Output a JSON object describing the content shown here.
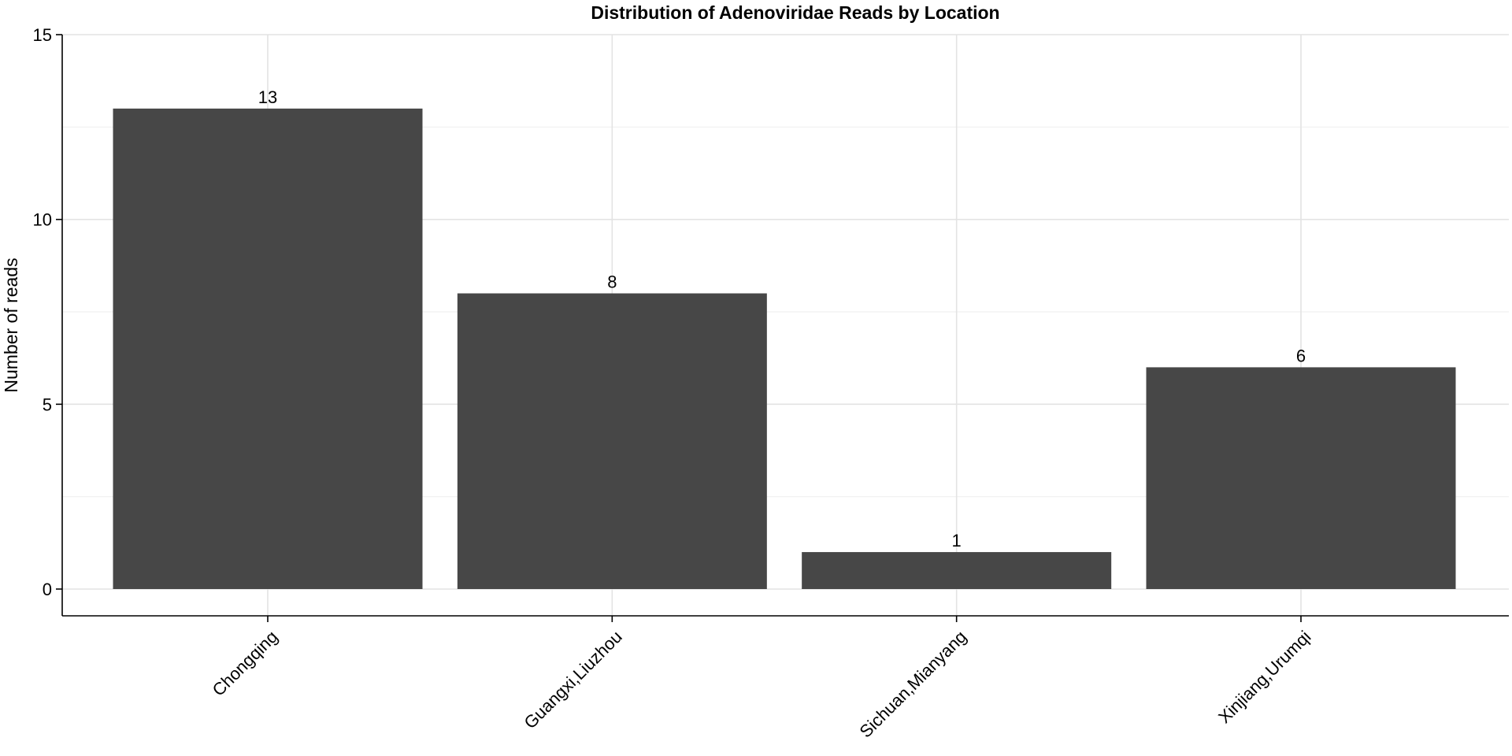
{
  "chart_data": {
    "type": "bar",
    "title": "Distribution of Adenoviridae Reads by Location",
    "xlabel": "",
    "ylabel": "Number of reads",
    "categories": [
      "Chongqing",
      "Guangxi,Liuzhou",
      "Sichuan,Mianyang",
      "Xinjiang,Urumqi"
    ],
    "values": [
      13,
      8,
      1,
      6
    ],
    "data_labels": [
      "13",
      "8",
      "1",
      "6"
    ],
    "ylim": [
      0,
      15
    ],
    "yticks": [
      0,
      5,
      10,
      15
    ],
    "ytick_labels": [
      "0",
      "5",
      "10",
      "15"
    ],
    "minor_yticks": [
      2.5,
      7.5,
      12.5
    ],
    "grid": true,
    "legend": "none",
    "x_tick_rotation_deg": -45,
    "colors": {
      "bar": "#474747",
      "grid_major": "#e3e3e3",
      "grid_minor": "#f0f0f0",
      "axis": "#000000",
      "background": "#ffffff"
    }
  }
}
